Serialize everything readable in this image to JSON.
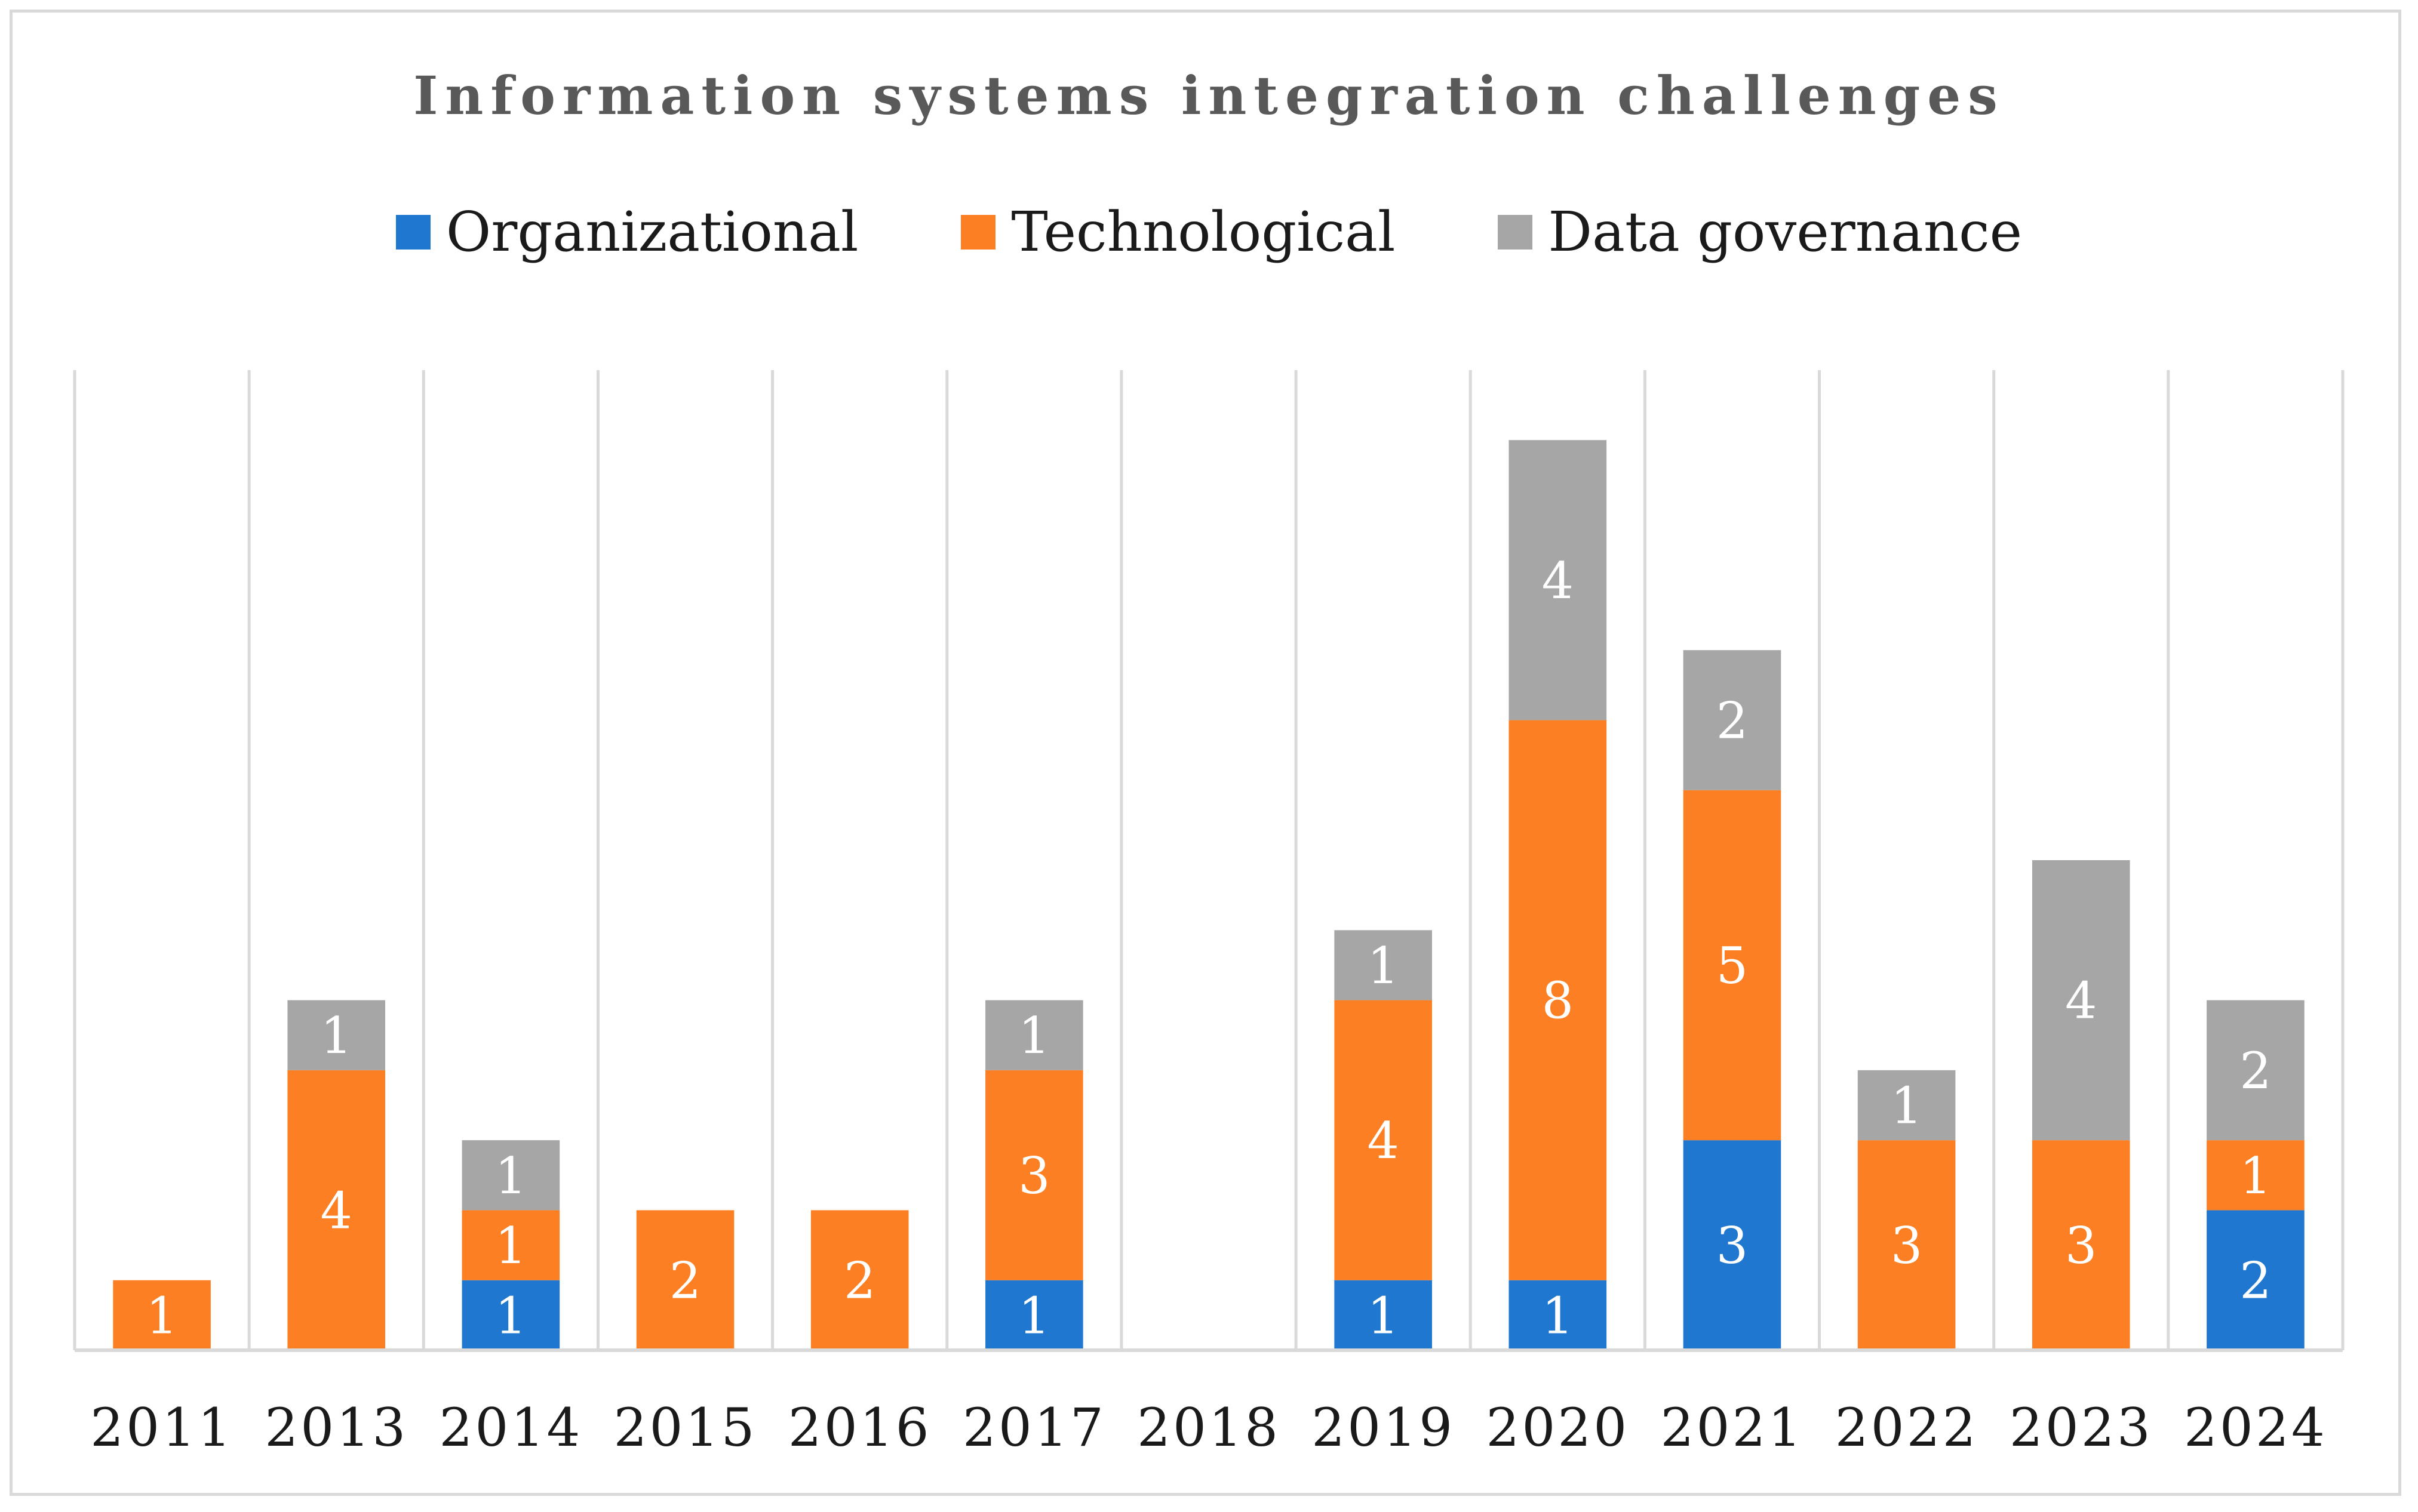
{
  "chart_data": {
    "type": "bar",
    "stacked": true,
    "title": "Information systems integration challenges",
    "xlabel": "",
    "ylabel": "",
    "ylim": [
      0,
      14
    ],
    "grid": "vertical",
    "legend_position": "top",
    "categories": [
      "2011",
      "2013",
      "2014",
      "2015",
      "2016",
      "2017",
      "2018",
      "2019",
      "2020",
      "2021",
      "2022",
      "2023",
      "2024"
    ],
    "series": [
      {
        "name": "Organizational",
        "color": "#1f77d0",
        "values": [
          0,
          0,
          1,
          0,
          0,
          1,
          0,
          1,
          1,
          3,
          0,
          0,
          2
        ]
      },
      {
        "name": "Technological",
        "color": "#fd7f23",
        "values": [
          1,
          4,
          1,
          2,
          2,
          3,
          0,
          4,
          8,
          5,
          3,
          3,
          1
        ]
      },
      {
        "name": "Data governance",
        "color": "#a6a6a6",
        "values": [
          0,
          1,
          1,
          0,
          0,
          1,
          0,
          1,
          4,
          2,
          1,
          4,
          2
        ]
      }
    ]
  }
}
